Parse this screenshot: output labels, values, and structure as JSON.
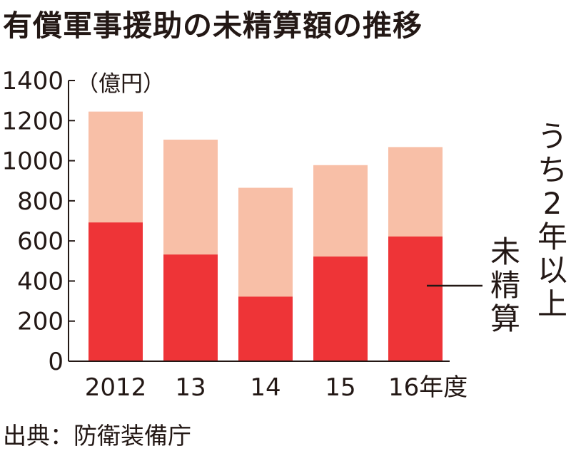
{
  "title": "有償軍事援助の未精算額の推移",
  "source": "出典：防衛装備庁",
  "colors": {
    "total": "#f8bfa7",
    "two_plus": "#ee3437",
    "text": "#231815"
  },
  "chart_data": {
    "type": "bar",
    "title": "有償軍事援助の未精算額の推移",
    "unit": "（億円）",
    "categories": [
      "2012",
      "13",
      "14",
      "15",
      "16年度"
    ],
    "series": [
      {
        "name": "未精算",
        "values": [
          1245,
          1105,
          865,
          978,
          1068
        ]
      },
      {
        "name": "うち2年以上",
        "values": [
          692,
          532,
          322,
          522,
          622
        ]
      }
    ],
    "ylim": [
      0,
      1400
    ],
    "yticks": [
      0,
      200,
      400,
      600,
      800,
      1000,
      1200,
      1400
    ],
    "grid": false,
    "legend": "right"
  }
}
